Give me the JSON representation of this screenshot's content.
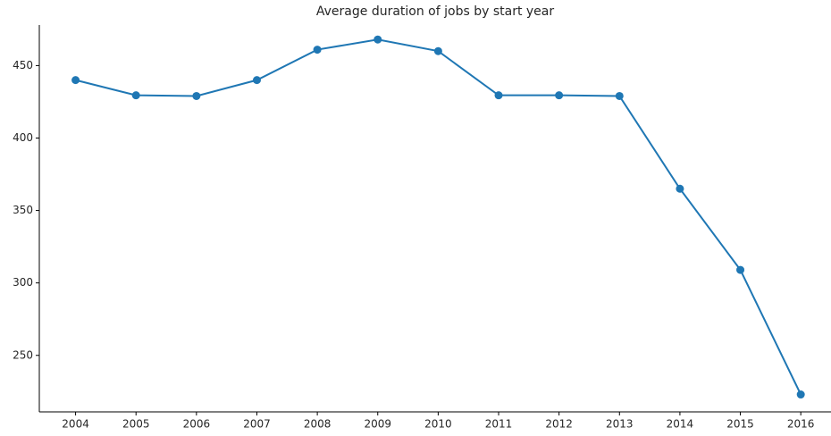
{
  "chart_data": {
    "type": "line",
    "title": "Average duration of jobs by start year",
    "x": [
      2004,
      2005,
      2006,
      2007,
      2008,
      2009,
      2010,
      2011,
      2012,
      2013,
      2014,
      2015,
      2016
    ],
    "series": [
      {
        "color": "#1f77b4",
        "values": [
          440,
          429.5,
          429,
          440,
          461,
          468,
          460,
          429.5,
          429.5,
          429,
          365,
          309,
          223
        ]
      }
    ],
    "xlim": [
      2003.4,
      2016.5
    ],
    "xticks": [
      2004,
      2005,
      2006,
      2007,
      2008,
      2009,
      2010,
      2011,
      2012,
      2013,
      2014,
      2015,
      2016
    ],
    "ylim": [
      211,
      478
    ],
    "yticks": [
      250,
      300,
      350,
      400,
      450
    ],
    "grid": false,
    "markers": true
  }
}
